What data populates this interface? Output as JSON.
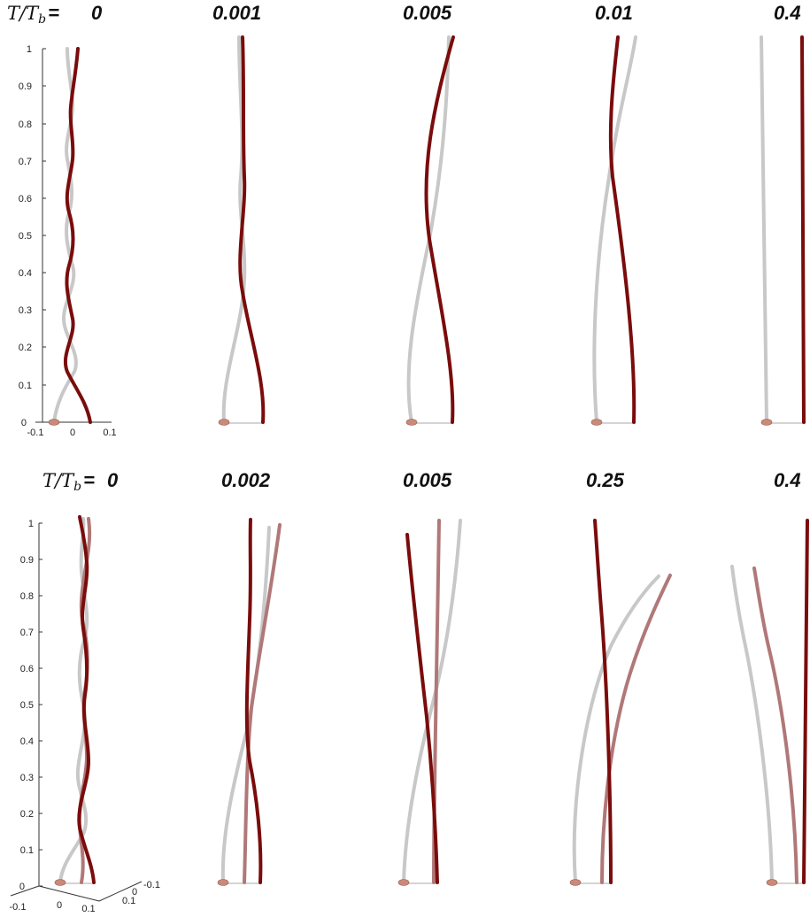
{
  "rows": [
    {
      "prefix_T": "T",
      "prefix_slash": "/",
      "prefix_Tb": "T",
      "prefix_sub": "b",
      "prefix_eq": "=",
      "labels": [
        "0",
        "0.001",
        "0.005",
        "0.01",
        "0.4"
      ]
    },
    {
      "prefix_T": "T",
      "prefix_slash": "/",
      "prefix_Tb": "T",
      "prefix_sub": "b",
      "prefix_eq": "=",
      "labels": [
        "0",
        "0.002",
        "0.005",
        "0.25",
        "0.4"
      ]
    }
  ],
  "axes": {
    "y_ticks": [
      "0",
      "0.1",
      "0.2",
      "0.3",
      "0.4",
      "0.5",
      "0.6",
      "0.7",
      "0.8",
      "0.9",
      "1"
    ],
    "top_x_ticks": [
      "-0.1",
      "0",
      "0.1"
    ],
    "bottom_x_ticks": [
      "-0.1",
      "0",
      "0.1"
    ],
    "bottom_depth_ticks": [
      "-0.1",
      "0",
      "0.1"
    ]
  },
  "colors": {
    "dark_red": "#7a0c0c",
    "light_gray": "#c8c8c8",
    "rose": "#b07878",
    "anchor": "#c98a7a"
  }
}
